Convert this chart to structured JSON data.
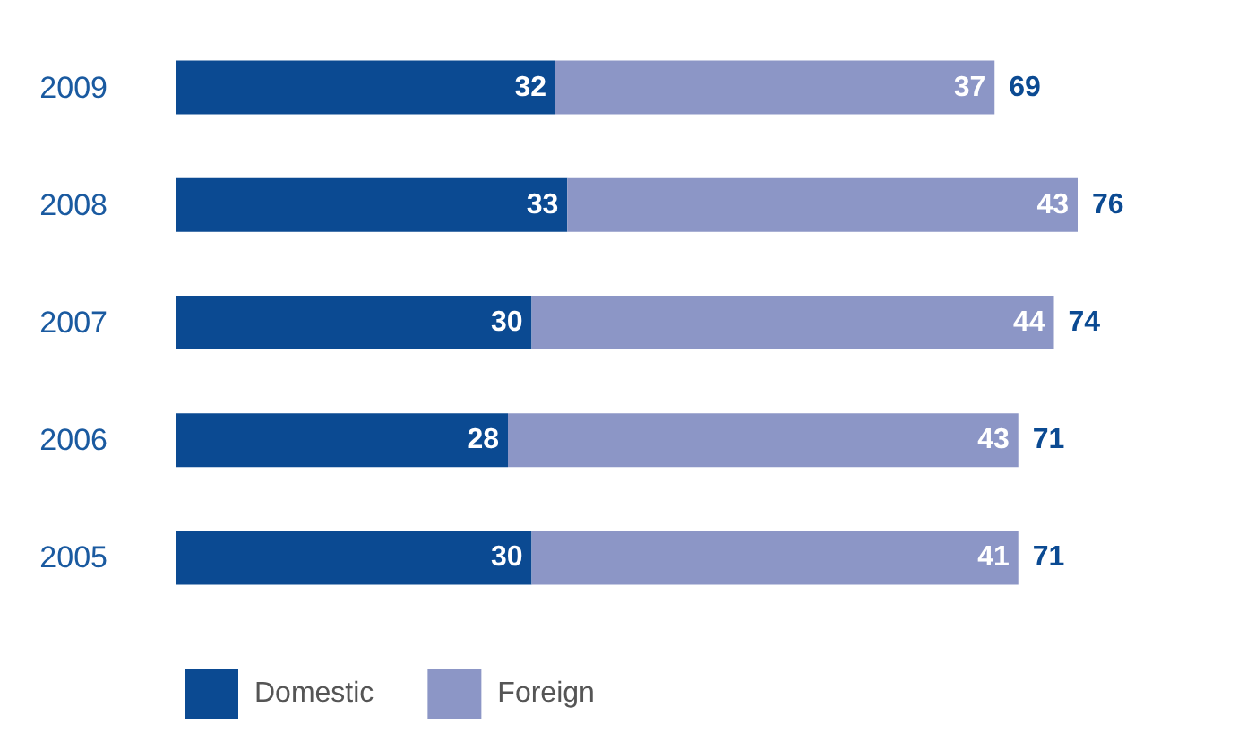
{
  "chart_data": {
    "type": "bar",
    "orientation": "horizontal",
    "stacked": true,
    "categories": [
      "2009",
      "2008",
      "2007",
      "2006",
      "2005"
    ],
    "series": [
      {
        "name": "Domestic",
        "color": "#0b4a92",
        "values": [
          32,
          33,
          30,
          28,
          30
        ]
      },
      {
        "name": "Foreign",
        "color": "#8c96c6",
        "values": [
          37,
          43,
          44,
          43,
          41
        ]
      }
    ],
    "totals": [
      "69",
      "76",
      "74",
      "71",
      "71"
    ],
    "data_labels": true,
    "legend": "bottom",
    "grid": false,
    "tick_labels": "y"
  }
}
